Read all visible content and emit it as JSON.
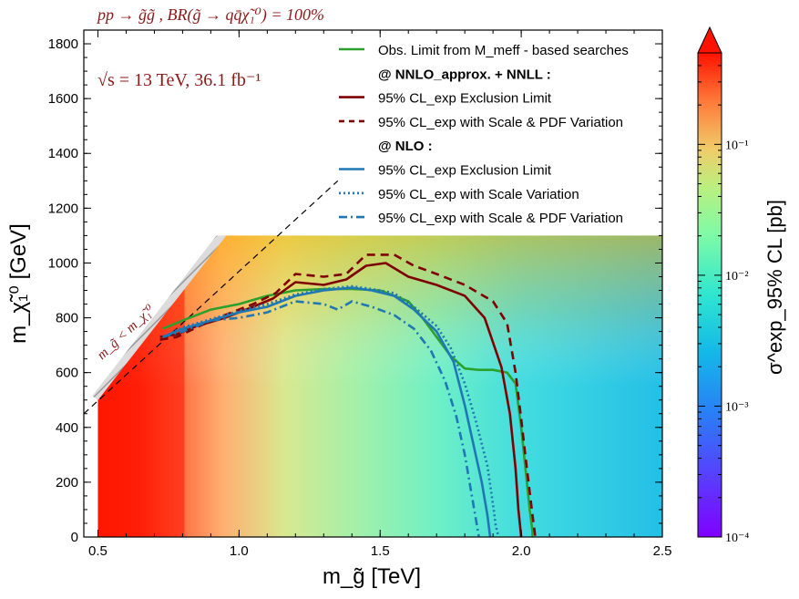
{
  "chart_data": {
    "type": "heatmap",
    "title": "pp → g̃g̃ , BR(g̃ → qq̄χ̃₁⁰) = 100%",
    "energy_label": "√s = 13 TeV, 36.1 fb⁻¹",
    "xlabel": "m_g̃ [TeV]",
    "ylabel": "m_χ̃₁⁰ [GeV]",
    "xlim": [
      0.45,
      2.5
    ],
    "ylim": [
      0,
      1850
    ],
    "xticks": [
      0.5,
      1.0,
      1.5,
      2.0,
      2.5
    ],
    "xtick_labels": [
      "0.5",
      "1.0",
      "1.5",
      "2.0",
      "2.5"
    ],
    "yticks": [
      0,
      200,
      400,
      600,
      800,
      1000,
      1200,
      1400,
      1600,
      1800
    ],
    "ytick_labels": [
      "0",
      "200",
      "400",
      "600",
      "800",
      "1000",
      "1200",
      "1400",
      "1600",
      "1800"
    ],
    "diagonal_label": "m_g̃ < m_χ̃₁⁰",
    "colorbar": {
      "label": "σ^exp_95% CL [pb]",
      "scale": "log",
      "range": [
        0.0001,
        0.5
      ],
      "extend": "max",
      "ticks": [
        0.0001,
        0.001,
        0.01,
        0.1
      ],
      "tick_labels": [
        "10⁻⁴",
        "10⁻³",
        "10⁻²",
        "10⁻¹"
      ]
    },
    "heatmap_region": {
      "x": [
        0.5,
        2.5
      ],
      "y": [
        0,
        1100
      ]
    },
    "legend_items": [
      {
        "text": "Obs. Limit from M_meff - based searches",
        "kind": "series",
        "color": "#2ca02c",
        "style": "solid"
      },
      {
        "text": "@ NNLO_approx. + NNLL :",
        "kind": "header"
      },
      {
        "text": "95% CL_exp Exclusion Limit",
        "kind": "series",
        "color": "#7f0000",
        "style": "solid"
      },
      {
        "text": "95% CL_exp with Scale & PDF Variation",
        "kind": "series",
        "color": "#7f0000",
        "style": "dashed"
      },
      {
        "text": "@ NLO :",
        "kind": "header"
      },
      {
        "text": "95% CL_exp Exclusion Limit",
        "kind": "series",
        "color": "#1f77b4",
        "style": "solid"
      },
      {
        "text": "95% CL_exp with Scale Variation",
        "kind": "series",
        "color": "#1f77b4",
        "style": "dotted"
      },
      {
        "text": "95% CL_exp with Scale & PDF Variation",
        "kind": "series",
        "color": "#1f77b4",
        "style": "dashdot"
      }
    ],
    "series": [
      {
        "name": "Obs. Limit (M_meff)",
        "color": "#2ca02c",
        "style": "solid",
        "x": [
          0.73,
          0.8,
          0.9,
          1.0,
          1.1,
          1.2,
          1.3,
          1.4,
          1.5,
          1.6,
          1.65,
          1.7,
          1.75,
          1.8,
          1.85,
          1.9,
          1.95,
          1.98,
          2.0,
          2.02,
          2.03,
          2.04,
          2.04
        ],
        "y": [
          760,
          790,
          830,
          850,
          880,
          900,
          905,
          905,
          900,
          860,
          800,
          730,
          660,
          615,
          610,
          610,
          600,
          560,
          400,
          200,
          100,
          20,
          0
        ]
      },
      {
        "name": "NNLO+NNLL Exclusion Limit",
        "color": "#7f0000",
        "style": "solid",
        "x": [
          0.72,
          0.78,
          0.85,
          0.95,
          1.05,
          1.12,
          1.2,
          1.3,
          1.38,
          1.45,
          1.52,
          1.6,
          1.7,
          1.8,
          1.87,
          1.93,
          1.96,
          1.98,
          1.99,
          2.0
        ],
        "y": [
          730,
          740,
          770,
          800,
          840,
          870,
          930,
          920,
          940,
          990,
          1000,
          950,
          920,
          880,
          800,
          620,
          450,
          250,
          100,
          0
        ]
      },
      {
        "name": "NNLO+NNLL Scale & PDF",
        "color": "#7f0000",
        "style": "dashed",
        "x": [
          0.72,
          0.78,
          0.86,
          0.95,
          1.05,
          1.13,
          1.2,
          1.3,
          1.38,
          1.45,
          1.55,
          1.62,
          1.7,
          1.8,
          1.9,
          1.95,
          1.98,
          2.0,
          2.02,
          2.04,
          2.05
        ],
        "y": [
          720,
          730,
          770,
          810,
          850,
          890,
          960,
          950,
          960,
          1030,
          1030,
          990,
          960,
          920,
          860,
          780,
          600,
          430,
          250,
          80,
          0
        ]
      },
      {
        "name": "NLO Exclusion Limit",
        "color": "#1f77b4",
        "style": "solid",
        "x": [
          0.73,
          0.8,
          0.9,
          1.0,
          1.1,
          1.2,
          1.3,
          1.4,
          1.47,
          1.55,
          1.62,
          1.7,
          1.76,
          1.8,
          1.83,
          1.86,
          1.88,
          1.89
        ],
        "y": [
          730,
          760,
          790,
          820,
          840,
          880,
          900,
          910,
          900,
          880,
          830,
          750,
          640,
          480,
          340,
          200,
          80,
          0
        ]
      },
      {
        "name": "NLO Scale Variation",
        "color": "#1f77b4",
        "style": "dotted",
        "x": [
          0.73,
          0.8,
          0.9,
          1.0,
          1.1,
          1.2,
          1.3,
          1.4,
          1.47,
          1.55,
          1.62,
          1.7,
          1.75,
          1.8,
          1.84,
          1.88,
          1.9,
          1.91,
          1.92
        ],
        "y": [
          730,
          765,
          795,
          825,
          850,
          885,
          905,
          915,
          905,
          890,
          840,
          770,
          690,
          560,
          420,
          260,
          120,
          40,
          0
        ]
      },
      {
        "name": "NLO Scale & PDF",
        "color": "#1f77b4",
        "style": "dashdot",
        "x": [
          0.73,
          0.8,
          0.9,
          1.0,
          1.1,
          1.2,
          1.3,
          1.35,
          1.4,
          1.47,
          1.55,
          1.62,
          1.68,
          1.73,
          1.77,
          1.8,
          1.82,
          1.84,
          1.85
        ],
        "y": [
          730,
          750,
          790,
          800,
          820,
          860,
          850,
          830,
          860,
          840,
          810,
          760,
          680,
          570,
          440,
          300,
          180,
          60,
          0
        ]
      }
    ]
  }
}
